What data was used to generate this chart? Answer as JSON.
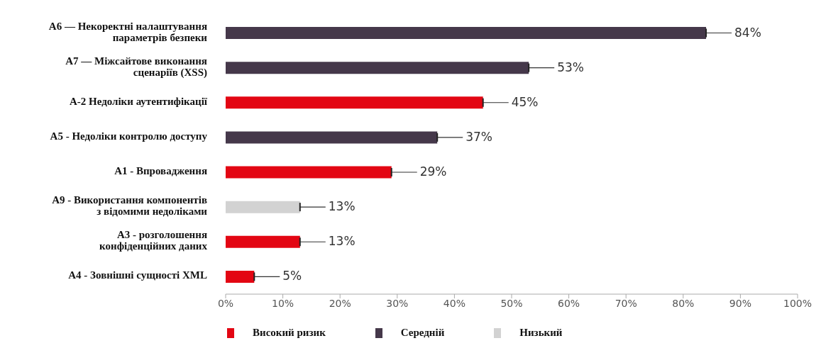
{
  "chart_data": {
    "type": "bar",
    "orientation": "horizontal",
    "stacked": true,
    "categories": [
      "A6 — Некоректні налаштування параметрів безпеки",
      "A7 — Міжсайтове виконання сценаріїв (XSS)",
      "А-2 Недоліки аутентифікації",
      "А5 - Недоліки контролю доступу",
      "А1 - Впровадження",
      "А9 - Використання компонентів з відомими недоліками",
      "А3 - розголошення конфіденційних даних",
      "А4 - Зовнішні сущності XML"
    ],
    "series": [
      {
        "name": "Високий ризик",
        "color": "#e30613",
        "values": [
          null,
          null,
          45,
          null,
          29,
          null,
          13,
          5
        ],
        "value_labels": [
          null,
          null,
          "45%",
          null,
          "29%",
          null,
          "13%",
          "5%"
        ]
      },
      {
        "name": "Середній",
        "color": "#45384a",
        "values": [
          84,
          53,
          null,
          37,
          null,
          null,
          null,
          null
        ],
        "value_labels": [
          "84%",
          "53%",
          null,
          "37%",
          null,
          null,
          null,
          null
        ]
      },
      {
        "name": "Низький",
        "color": "#d2d2d2",
        "values": [
          null,
          null,
          null,
          null,
          null,
          13,
          null,
          null
        ],
        "value_labels": [
          null,
          null,
          null,
          null,
          null,
          "13%",
          null,
          null
        ]
      }
    ],
    "xlim": [
      0,
      100
    ],
    "xticks": [
      {
        "value": 0,
        "label": "0%"
      },
      {
        "value": 10,
        "label": "10%"
      },
      {
        "value": 20,
        "label": "20%"
      },
      {
        "value": 30,
        "label": "30%"
      },
      {
        "value": 40,
        "label": "40%"
      },
      {
        "value": 50,
        "label": "50%"
      },
      {
        "value": 60,
        "label": "60%"
      },
      {
        "value": 70,
        "label": "70%"
      },
      {
        "value": 80,
        "label": "80%"
      },
      {
        "value": 90,
        "label": "90%"
      },
      {
        "value": 100,
        "label": "100%"
      }
    ],
    "legend": "bottom left"
  }
}
